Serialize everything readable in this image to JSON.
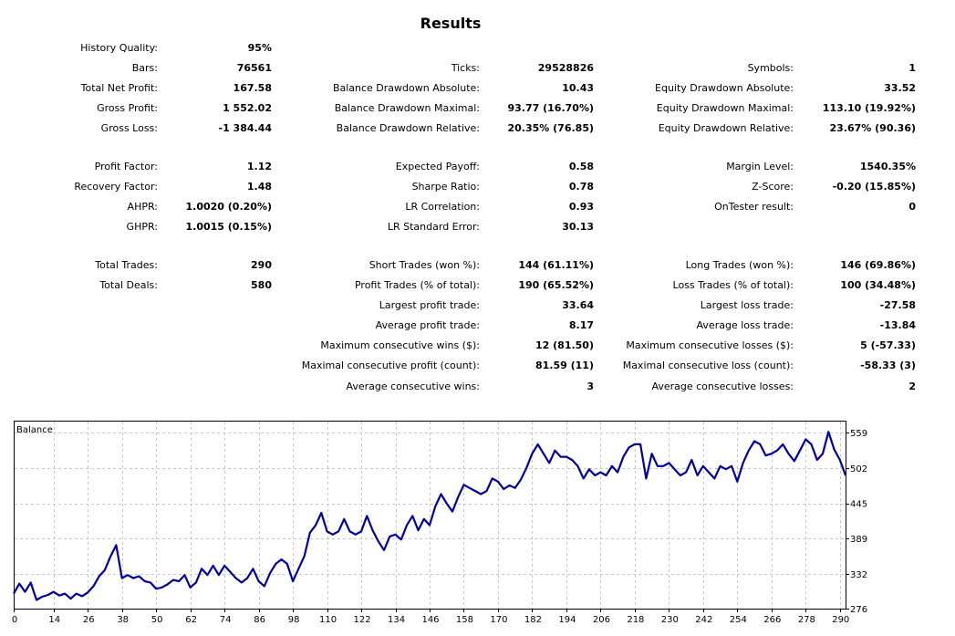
{
  "title": "Results",
  "rows": [
    [
      [
        "History Quality:",
        "95%"
      ],
      null,
      null
    ],
    [
      [
        "Bars:",
        "76561"
      ],
      [
        "Ticks:",
        "29528826"
      ],
      [
        "Symbols:",
        "1"
      ]
    ],
    [
      [
        "Total Net Profit:",
        "167.58"
      ],
      [
        "Balance Drawdown Absolute:",
        "10.43"
      ],
      [
        "Equity Drawdown Absolute:",
        "33.52"
      ]
    ],
    [
      [
        "Gross Profit:",
        "1 552.02"
      ],
      [
        "Balance Drawdown Maximal:",
        "93.77 (16.70%)"
      ],
      [
        "Equity Drawdown Maximal:",
        "113.10 (19.92%)"
      ]
    ],
    [
      [
        "Gross Loss:",
        "-1 384.44"
      ],
      [
        "Balance Drawdown Relative:",
        "20.35% (76.85)"
      ],
      [
        "Equity Drawdown Relative:",
        "23.67% (90.36)"
      ]
    ],
    null,
    [
      [
        "Profit Factor:",
        "1.12"
      ],
      [
        "Expected Payoff:",
        "0.58"
      ],
      [
        "Margin Level:",
        "1540.35%"
      ]
    ],
    [
      [
        "Recovery Factor:",
        "1.48"
      ],
      [
        "Sharpe Ratio:",
        "0.78"
      ],
      [
        "Z-Score:",
        "-0.20 (15.85%)"
      ]
    ],
    [
      [
        "AHPR:",
        "1.0020 (0.20%)"
      ],
      [
        "LR Correlation:",
        "0.93"
      ],
      [
        "OnTester result:",
        "0"
      ]
    ],
    [
      [
        "GHPR:",
        "1.0015 (0.15%)"
      ],
      [
        "LR Standard Error:",
        "30.13"
      ],
      null
    ],
    null,
    [
      [
        "Total Trades:",
        "290"
      ],
      [
        "Short Trades (won %):",
        "144 (61.11%)"
      ],
      [
        "Long Trades (won %):",
        "146 (69.86%)"
      ]
    ],
    [
      [
        "Total Deals:",
        "580"
      ],
      [
        "Profit Trades (% of total):",
        "190 (65.52%)"
      ],
      [
        "Loss Trades (% of total):",
        "100 (34.48%)"
      ]
    ],
    [
      null,
      [
        "Largest profit trade:",
        "33.64"
      ],
      [
        "Largest loss trade:",
        "-27.58"
      ]
    ],
    [
      null,
      [
        "Average profit trade:",
        "8.17"
      ],
      [
        "Average loss trade:",
        "-13.84"
      ]
    ],
    [
      null,
      [
        "Maximum consecutive wins ($):",
        "12 (81.50)"
      ],
      [
        "Maximum consecutive losses ($):",
        "5 (-57.33)"
      ]
    ],
    [
      null,
      [
        "Maximal consecutive profit (count):",
        "81.59 (11)"
      ],
      [
        "Maximal consecutive loss (count):",
        "-58.33 (3)"
      ]
    ],
    [
      null,
      [
        "Average consecutive wins:",
        "3"
      ],
      [
        "Average consecutive losses:",
        "2"
      ]
    ]
  ],
  "chart_data": {
    "type": "line",
    "title": "Balance",
    "color": "#0000a0",
    "grid": true,
    "grid_style": "dashed",
    "y_axis_side": "right",
    "xlim": [
      0,
      292
    ],
    "ylim": [
      276,
      578
    ],
    "xticks": [
      0,
      14,
      26,
      38,
      50,
      62,
      74,
      86,
      98,
      110,
      122,
      134,
      146,
      158,
      170,
      182,
      194,
      206,
      218,
      230,
      242,
      254,
      266,
      278,
      290
    ],
    "yticks": [
      276,
      332,
      389,
      445,
      502,
      559
    ],
    "series": [
      {
        "x": [
          0,
          2,
          4,
          6,
          8,
          10,
          12,
          14,
          16,
          18,
          20,
          22,
          24,
          26,
          28,
          30,
          32,
          34,
          36,
          38,
          40,
          42,
          44,
          46,
          48,
          50,
          52,
          54,
          56,
          58,
          60,
          62,
          64,
          66,
          68,
          70,
          72,
          74,
          76,
          78,
          80,
          82,
          84,
          86,
          88,
          90,
          92,
          94,
          96,
          98,
          100,
          102,
          104,
          106,
          108,
          110,
          112,
          114,
          116,
          118,
          120,
          122,
          124,
          126,
          128,
          130,
          132,
          134,
          136,
          138,
          140,
          142,
          144,
          146,
          148,
          150,
          152,
          154,
          156,
          158,
          160,
          162,
          164,
          166,
          168,
          170,
          172,
          174,
          176,
          178,
          180,
          182,
          184,
          186,
          188,
          190,
          192,
          194,
          196,
          198,
          200,
          202,
          204,
          206,
          208,
          210,
          212,
          214,
          216,
          218,
          220,
          222,
          224,
          226,
          228,
          230,
          232,
          234,
          236,
          238,
          240,
          242,
          244,
          246,
          248,
          250,
          252,
          254,
          256,
          258,
          260,
          262,
          264,
          266,
          268,
          270,
          272,
          274,
          276,
          278,
          280,
          282,
          284,
          286,
          288,
          290,
          292
        ],
        "y": [
          300,
          316,
          303,
          318,
          290,
          295,
          298,
          303,
          297,
          300,
          292,
          300,
          296,
          302,
          312,
          328,
          338,
          360,
          378,
          325,
          330,
          325,
          328,
          320,
          318,
          308,
          310,
          315,
          322,
          320,
          330,
          310,
          318,
          340,
          330,
          345,
          330,
          345,
          335,
          325,
          318,
          325,
          340,
          320,
          312,
          333,
          348,
          355,
          348,
          320,
          340,
          360,
          398,
          410,
          430,
          400,
          395,
          400,
          420,
          400,
          395,
          400,
          425,
          402,
          384,
          370,
          392,
          395,
          387,
          410,
          425,
          402,
          420,
          410,
          440,
          460,
          445,
          432,
          455,
          475,
          470,
          465,
          460,
          465,
          485,
          480,
          468,
          474,
          470,
          483,
          502,
          525,
          540,
          525,
          510,
          530,
          520,
          520,
          515,
          505,
          485,
          500,
          490,
          495,
          490,
          505,
          495,
          520,
          535,
          540,
          540,
          485,
          525,
          505,
          505,
          510,
          500,
          490,
          495,
          515,
          490,
          505,
          495,
          485,
          505,
          500,
          505,
          480,
          510,
          530,
          545,
          540,
          522,
          525,
          530,
          540,
          525,
          513,
          530,
          548,
          540,
          515,
          525,
          560,
          532,
          515,
          490
        ]
      }
    ]
  }
}
